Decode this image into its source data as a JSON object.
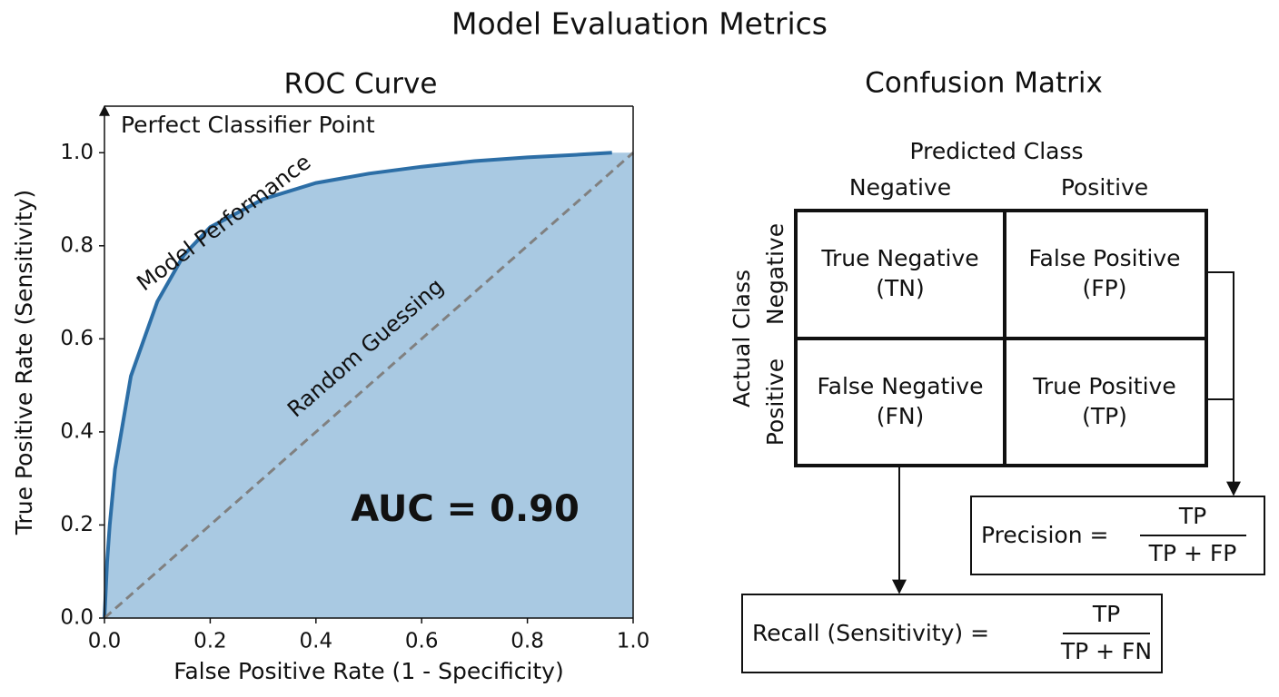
{
  "title": "Model Evaluation Metrics",
  "chart_data": {
    "type": "line",
    "title": "ROC Curve",
    "xlabel": "False Positive Rate (1 - Specificity)",
    "ylabel": "True Positive Rate (Sensitivity)",
    "xlim": [
      0,
      1
    ],
    "ylim": [
      0,
      1.1
    ],
    "xticks": [
      {
        "value": 0,
        "label": "0.0"
      },
      {
        "value": 0.2,
        "label": "0.2"
      },
      {
        "value": 0.4,
        "label": "0.4"
      },
      {
        "value": 0.6,
        "label": "0.6"
      },
      {
        "value": 0.8,
        "label": "0.8"
      },
      {
        "value": 1,
        "label": "1.0"
      }
    ],
    "yticks": [
      {
        "value": 0,
        "label": "0.0"
      },
      {
        "value": 0.2,
        "label": "0.2"
      },
      {
        "value": 0.4,
        "label": "0.4"
      },
      {
        "value": 0.6,
        "label": "0.6"
      },
      {
        "value": 0.8,
        "label": "0.8"
      },
      {
        "value": 1,
        "label": "1.0"
      }
    ],
    "series": [
      {
        "name": "Model Performance",
        "color": "#2c6ea6",
        "fill": "#a9c9e2",
        "x": [
          0,
          0.005,
          0.01,
          0.02,
          0.05,
          0.1,
          0.15,
          0.2,
          0.3,
          0.4,
          0.5,
          0.6,
          0.7,
          0.8,
          0.9,
          0.96
        ],
        "values": [
          0,
          0.12,
          0.2,
          0.32,
          0.52,
          0.68,
          0.78,
          0.84,
          0.9,
          0.935,
          0.955,
          0.97,
          0.982,
          0.99,
          0.996,
          1.0
        ]
      },
      {
        "name": "Random Guessing",
        "color": "#808080",
        "dashed": true,
        "x": [
          0,
          1
        ],
        "values": [
          0,
          1
        ]
      }
    ],
    "annotations": [
      "Perfect Classifier Point",
      "AUC = 0.90"
    ]
  },
  "confusion_matrix": {
    "title": "Confusion Matrix",
    "predicted_label": "Predicted Class",
    "columns": [
      "Negative",
      "Positive"
    ],
    "actual_label": "Actual Class",
    "rows": [
      "Negative",
      "Positive"
    ],
    "cells": [
      [
        {
          "name": "True Negative",
          "abbr": "(TN)"
        },
        {
          "name": "False Positive",
          "abbr": "(FP)"
        }
      ],
      [
        {
          "name": "False Negative",
          "abbr": "(FN)"
        },
        {
          "name": "True Positive",
          "abbr": "(TP)"
        }
      ]
    ],
    "precision": {
      "label": "Precision =",
      "numerator": "TP",
      "denominator": "TP + FP"
    },
    "recall": {
      "label": "Recall (Sensitivity) =",
      "numerator": "TP",
      "denominator": "TP + FN"
    }
  }
}
